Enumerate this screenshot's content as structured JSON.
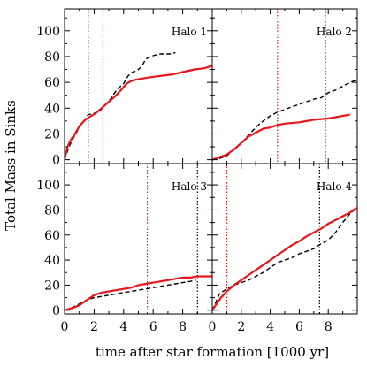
{
  "chart_data": {
    "type": "line",
    "ylabel": "Total Mass in Sinks",
    "xlabel": "time after star formation [1000 yr]",
    "xlim": [
      0,
      10
    ],
    "ylim": [
      -3,
      117
    ],
    "xticks": [
      "0",
      "2",
      "4",
      "6",
      "8"
    ],
    "yticks": [
      "0",
      "20",
      "40",
      "60",
      "80",
      "100"
    ],
    "grid": false,
    "colors": {
      "solid": "#e8171b",
      "dashed": "#000000",
      "red_marker": "#e8171b",
      "black_marker": "#000000"
    },
    "panels": [
      {
        "label": "Halo 1",
        "solid": {
          "x": [
            0,
            0.2,
            0.4,
            0.7,
            1.0,
            1.4,
            1.8,
            2.1,
            2.4,
            2.7,
            3.1,
            3.5,
            3.9,
            4.2,
            4.5,
            4.8,
            5.3,
            5.8,
            6.5,
            7.2,
            8.0,
            8.8,
            9.5,
            10.0
          ],
          "y": [
            0,
            10,
            15,
            20,
            26,
            31,
            34,
            36,
            39,
            42,
            46,
            50,
            55,
            59,
            61,
            62,
            63,
            64,
            65,
            66,
            68,
            70,
            71,
            73
          ]
        },
        "dashed": {
          "x": [
            0,
            0.3,
            0.6,
            1.0,
            1.3,
            1.6,
            2.0,
            2.4,
            2.8,
            3.1,
            3.4,
            3.7,
            4.0,
            4.3,
            4.6,
            4.9,
            5.2,
            5.5,
            5.8,
            6.1,
            6.4,
            6.8,
            7.2,
            7.5
          ],
          "y": [
            0,
            10,
            17,
            25,
            30,
            35,
            36,
            38,
            43,
            47,
            52,
            56,
            59,
            65,
            68,
            69,
            72,
            78,
            80,
            81,
            82,
            82,
            82,
            83
          ]
        },
        "red_line_x": 2.6,
        "black_line_x": 1.6
      },
      {
        "label": "Halo 2",
        "solid": {
          "x": [
            0,
            0.5,
            1.0,
            1.5,
            2.0,
            2.5,
            3.0,
            3.5,
            4.0,
            4.5,
            5.0,
            6.0,
            7.0,
            8.0,
            9.0,
            9.5
          ],
          "y": [
            0,
            2,
            4,
            8,
            13,
            18,
            21,
            24,
            25,
            27,
            28,
            29,
            31,
            32,
            34,
            35
          ]
        },
        "dashed": {
          "x": [
            0,
            0.5,
            1.0,
            1.5,
            2.0,
            2.5,
            3.0,
            3.5,
            4.0,
            4.5,
            5.0,
            5.5,
            6.0,
            6.5,
            7.0,
            7.5,
            8.0,
            8.5,
            9.0,
            9.5,
            10.0
          ],
          "y": [
            0,
            1,
            3,
            8,
            13,
            19,
            25,
            30,
            34,
            37,
            39,
            41,
            43,
            45,
            47,
            48,
            52,
            54,
            57,
            60,
            62
          ]
        },
        "red_line_x": 4.5,
        "black_line_x": 7.8
      },
      {
        "label": "Halo 3",
        "solid": {
          "x": [
            0,
            0.3,
            0.6,
            1.0,
            1.5,
            2.0,
            2.5,
            3.0,
            3.5,
            4.0,
            4.5,
            5.0,
            5.5,
            6.0,
            6.5,
            7.0,
            7.5,
            8.0,
            8.5,
            9.0,
            9.5,
            10.0
          ],
          "y": [
            0,
            1,
            2,
            4,
            8,
            12,
            14,
            15,
            16,
            17,
            18,
            20,
            21,
            22,
            23,
            24,
            25,
            26,
            26,
            27,
            27,
            27
          ]
        },
        "dashed": {
          "x": [
            0,
            0.5,
            1.0,
            1.5,
            2.0,
            2.5,
            3.0,
            3.5,
            4.0,
            4.5,
            5.0,
            5.5,
            6.0,
            6.5,
            7.0,
            7.5,
            8.0,
            8.5,
            8.9
          ],
          "y": [
            0,
            2,
            5,
            8,
            10,
            11,
            12,
            13,
            14,
            15,
            16,
            17,
            18,
            19,
            20,
            21,
            22,
            23,
            24
          ]
        },
        "red_line_x": 5.6,
        "black_line_x": 9.0
      },
      {
        "label": "Halo 4",
        "solid": {
          "x": [
            0,
            0.3,
            0.6,
            1.0,
            1.5,
            2.0,
            2.5,
            3.0,
            3.5,
            4.0,
            4.5,
            5.0,
            5.5,
            6.0,
            6.5,
            7.0,
            7.5,
            8.0,
            8.5,
            9.0,
            9.5,
            10.0
          ],
          "y": [
            0,
            5,
            10,
            15,
            20,
            24,
            28,
            32,
            36,
            40,
            44,
            48,
            52,
            55,
            59,
            62,
            65,
            69,
            72,
            75,
            78,
            82
          ]
        },
        "dashed": {
          "x": [
            0,
            0.5,
            1.0,
            1.5,
            2.0,
            2.5,
            3.0,
            3.5,
            4.0,
            4.5,
            5.0,
            5.5,
            6.0,
            6.5,
            7.0,
            7.5,
            8.0,
            8.5,
            9.0,
            9.5,
            10.0
          ],
          "y": [
            0,
            13,
            17,
            20,
            22,
            24,
            27,
            30,
            34,
            38,
            40,
            42,
            45,
            47,
            49,
            53,
            56,
            62,
            70,
            77,
            82
          ]
        },
        "red_line_x": 1.0,
        "black_line_x": 7.4
      }
    ]
  }
}
